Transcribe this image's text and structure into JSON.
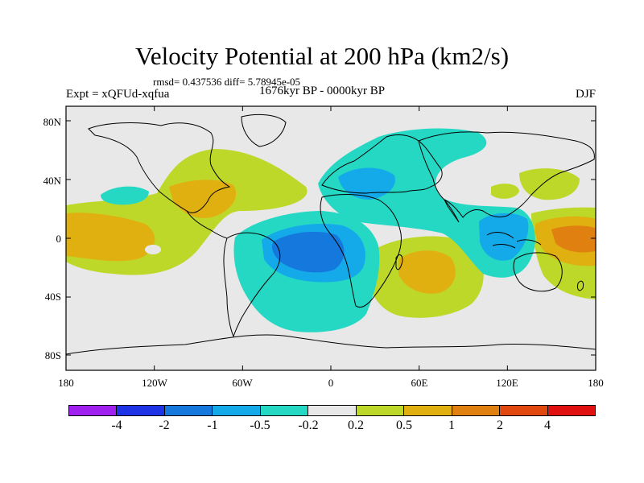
{
  "title": "Velocity Potential at 200 hPa (km2/s)",
  "stats": "rmsd= 0.437536 diff= 5.78945e-05",
  "experiment": "Expt = xQFUd-xqfua",
  "period": "1676kyr BP - 0000kyr BP",
  "season": "DJF",
  "lat_labels": [
    "80N",
    "40N",
    "0",
    "40S",
    "80S"
  ],
  "lon_labels": [
    "180",
    "120W",
    "60W",
    "0",
    "60E",
    "120E",
    "180"
  ],
  "colorbar": {
    "colors": [
      "#a020f0",
      "#1e32e6",
      "#1478dc",
      "#14aaea",
      "#24d8c4",
      "#e8e8e8",
      "#bed82a",
      "#e0b010",
      "#e08010",
      "#e04810",
      "#e01010"
    ],
    "labels": [
      "-4",
      "-2",
      "-1",
      "-0.5",
      "-0.2",
      "0.2",
      "0.5",
      "1",
      "2",
      "4"
    ]
  },
  "colors": {
    "land_outline": "#000000",
    "ocean_bg": "#e8e8e8"
  }
}
